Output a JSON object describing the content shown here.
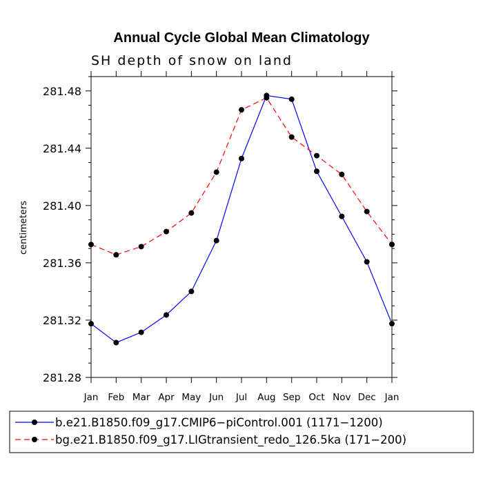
{
  "chart_data": {
    "type": "line",
    "title": "Annual Cycle Global Mean Climatology",
    "subtitle": "SH depth of snow on land",
    "xlabel": "",
    "ylabel": "centimeters",
    "categories": [
      "Jan",
      "Feb",
      "Mar",
      "Apr",
      "May",
      "Jun",
      "Jul",
      "Aug",
      "Sep",
      "Oct",
      "Nov",
      "Dec",
      "Jan"
    ],
    "ylim": [
      281.28,
      281.49
    ],
    "yticks": [
      "281.28",
      "281.32",
      "281.36",
      "281.40",
      "281.44",
      "281.48"
    ],
    "grid": false,
    "legend_position": "bottom",
    "series": [
      {
        "name": "b.e21.B1850.f09_g17.CMIP6−piControl.001 (1171−1200)",
        "color": "#0000ff",
        "line_style": "solid",
        "values": [
          281.3175,
          281.3043,
          281.3115,
          281.3236,
          281.34,
          281.3755,
          281.4328,
          281.4768,
          281.4742,
          281.4239,
          281.3924,
          281.3607,
          281.3175
        ]
      },
      {
        "name": "bg.e21.B1850.f09_g17.LIGtransient_redo_126.5ka (171−200)",
        "color": "#ff0000",
        "line_style": "dashed",
        "values": [
          281.3728,
          281.3656,
          281.3713,
          281.3818,
          281.3948,
          281.4233,
          281.4668,
          281.4752,
          281.4478,
          281.4348,
          281.4217,
          281.3958,
          281.3728
        ]
      }
    ]
  }
}
